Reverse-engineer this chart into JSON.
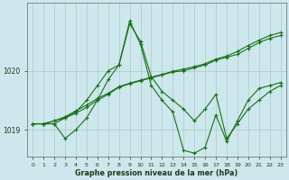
{
  "xlabel": "Graphe pression niveau de la mer (hPa)",
  "background_color": "#cce8ec",
  "grid_color": "#b0c8cc",
  "line_color": "#1a6e1a",
  "xlim": [
    -0.5,
    23.5
  ],
  "ylim": [
    1018.55,
    1021.15
  ],
  "yticks": [
    1019,
    1020
  ],
  "xticks": [
    0,
    1,
    2,
    3,
    4,
    5,
    6,
    7,
    8,
    9,
    10,
    11,
    12,
    13,
    14,
    15,
    16,
    17,
    18,
    19,
    20,
    21,
    22,
    23
  ],
  "series": [
    [
      1019.1,
      1019.1,
      1019.1,
      1019.2,
      1019.3,
      1019.5,
      1019.75,
      1020.0,
      1020.1,
      1020.8,
      1020.5,
      1019.9,
      1019.65,
      1019.5,
      1019.35,
      1019.15,
      1019.35,
      1019.6,
      1018.85,
      1019.1,
      1019.35,
      1019.5,
      1019.65,
      1019.75
    ],
    [
      1019.1,
      1019.1,
      1019.1,
      1018.85,
      1019.0,
      1019.2,
      1019.5,
      1019.85,
      1020.1,
      1020.85,
      1020.45,
      1019.75,
      1019.5,
      1019.3,
      1018.65,
      1018.6,
      1018.7,
      1019.25,
      1018.8,
      1019.15,
      1019.5,
      1019.7,
      1019.75,
      1019.8
    ],
    [
      1019.1,
      1019.1,
      1019.15,
      1019.2,
      1019.28,
      1019.38,
      1019.5,
      1019.6,
      1019.72,
      1019.78,
      1019.83,
      1019.88,
      1019.93,
      1019.98,
      1020.0,
      1020.05,
      1020.1,
      1020.18,
      1020.23,
      1020.28,
      1020.38,
      1020.48,
      1020.55,
      1020.6
    ],
    [
      1019.1,
      1019.1,
      1019.15,
      1019.22,
      1019.32,
      1019.42,
      1019.53,
      1019.62,
      1019.73,
      1019.79,
      1019.84,
      1019.89,
      1019.94,
      1019.99,
      1020.03,
      1020.07,
      1020.12,
      1020.2,
      1020.25,
      1020.33,
      1020.43,
      1020.52,
      1020.6,
      1020.65
    ]
  ]
}
